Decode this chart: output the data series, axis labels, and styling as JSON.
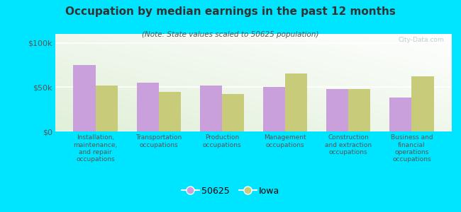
{
  "title": "Occupation by median earnings in the past 12 months",
  "subtitle": "(Note: State values scaled to 50625 population)",
  "categories": [
    "Installation,\nmaintenance,\nand repair\noccupations",
    "Transportation\noccupations",
    "Production\noccupations",
    "Management\noccupations",
    "Construction\nand extraction\noccupations",
    "Business and\nfinancial\noperations\noccupations"
  ],
  "values_50625": [
    75000,
    55000,
    52000,
    50000,
    48000,
    38000
  ],
  "values_iowa": [
    52000,
    45000,
    42000,
    65000,
    48000,
    62000
  ],
  "color_50625": "#c9a0dc",
  "color_iowa": "#c8cc7a",
  "ylim": [
    0,
    110000
  ],
  "yticks": [
    0,
    50000,
    100000
  ],
  "ytick_labels": [
    "$0",
    "$50k",
    "$100k"
  ],
  "legend_labels": [
    "50625",
    "Iowa"
  ],
  "background_outer": "#00e5ff",
  "bar_width": 0.35,
  "watermark": "City-Data.com",
  "title_color": "#333333",
  "subtitle_color": "#555555",
  "tick_color": "#555555"
}
